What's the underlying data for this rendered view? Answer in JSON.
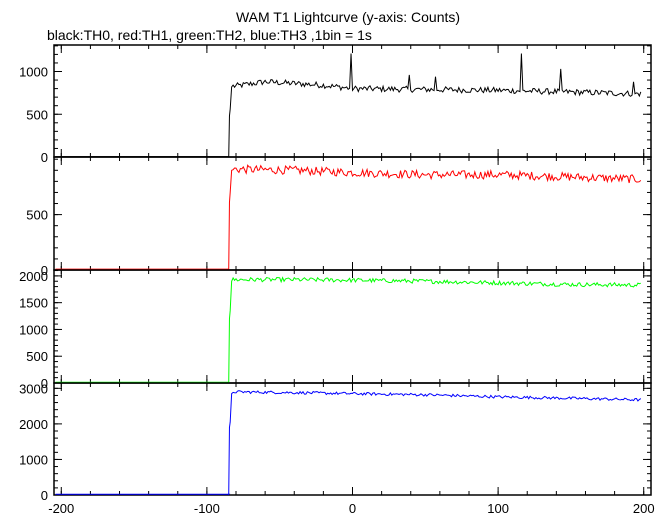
{
  "chart_data": {
    "type": "line",
    "title": "WAM T1 Lightcurve (y-axis: Counts)",
    "subtitle": "black:TH0, red:TH1, green:TH2, blue:TH3 ,1bin = 1s",
    "xlim": [
      -205,
      205
    ],
    "x_ticks": [
      -200,
      -100,
      0,
      100,
      200
    ],
    "x_tick_labels": [
      "-200",
      "-100",
      "0",
      "100",
      "200"
    ],
    "onset_x": -83,
    "grid": false,
    "panels": [
      {
        "name": "TH0",
        "color": "#000000",
        "ylim": [
          0,
          1310
        ],
        "yticks": [
          0,
          500,
          1000
        ],
        "ytick_labels": [
          "0",
          "500",
          "1000"
        ],
        "pre_level": 5,
        "ramp": [
          [
            -85,
            5
          ],
          [
            -84.5,
            480
          ],
          [
            -84,
            560
          ],
          [
            -83,
            820
          ]
        ],
        "post_points": [
          [
            -80,
            830
          ],
          [
            -60,
            880
          ],
          [
            -40,
            860
          ],
          [
            -20,
            840
          ],
          [
            0,
            800
          ],
          [
            50,
            790
          ],
          [
            100,
            780
          ],
          [
            150,
            760
          ],
          [
            195,
            740
          ]
        ],
        "noise": 35,
        "spikes": [
          [
            -1,
            1210
          ],
          [
            39,
            960
          ],
          [
            57,
            940
          ],
          [
            116,
            1210
          ],
          [
            143,
            1030
          ],
          [
            193,
            880
          ]
        ]
      },
      {
        "name": "TH1",
        "color": "#ff0000",
        "ylim": [
          0,
          1020
        ],
        "yticks": [
          0,
          500
        ],
        "ytick_labels": [
          "0",
          "500"
        ],
        "pre_level": 8,
        "ramp": [
          [
            -85,
            8
          ],
          [
            -84.5,
            610
          ],
          [
            -84,
            700
          ],
          [
            -83,
            900
          ]
        ],
        "post_points": [
          [
            -80,
            910
          ],
          [
            -40,
            900
          ],
          [
            0,
            880
          ],
          [
            50,
            860
          ],
          [
            100,
            860
          ],
          [
            150,
            840
          ],
          [
            195,
            820
          ]
        ],
        "noise": 38,
        "spikes": []
      },
      {
        "name": "TH2",
        "color": "#00ff00",
        "ylim": [
          0,
          2110
        ],
        "yticks": [
          0,
          500,
          1000,
          1500,
          2000
        ],
        "ytick_labels": [
          "0",
          "500",
          "1000",
          "1500",
          "2000"
        ],
        "pre_level": 15,
        "ramp": [
          [
            -85,
            15
          ],
          [
            -84.5,
            1200
          ],
          [
            -84,
            1350
          ],
          [
            -83,
            1900
          ]
        ],
        "post_points": [
          [
            -80,
            1930
          ],
          [
            -40,
            1930
          ],
          [
            0,
            1920
          ],
          [
            50,
            1900
          ],
          [
            100,
            1870
          ],
          [
            150,
            1840
          ],
          [
            195,
            1830
          ]
        ],
        "noise": 40,
        "spikes": []
      },
      {
        "name": "TH3",
        "color": "#0000ff",
        "ylim": [
          0,
          3150
        ],
        "yticks": [
          0,
          1000,
          2000,
          3000
        ],
        "ytick_labels": [
          "0",
          "1000",
          "2000",
          "3000"
        ],
        "pre_level": 20,
        "ramp": [
          [
            -85,
            20
          ],
          [
            -84.5,
            1900
          ],
          [
            -84,
            2050
          ],
          [
            -83,
            2850
          ]
        ],
        "post_points": [
          [
            -80,
            2900
          ],
          [
            -40,
            2880
          ],
          [
            0,
            2850
          ],
          [
            50,
            2820
          ],
          [
            100,
            2760
          ],
          [
            150,
            2720
          ],
          [
            195,
            2680
          ]
        ],
        "noise": 40,
        "spikes": []
      }
    ]
  }
}
